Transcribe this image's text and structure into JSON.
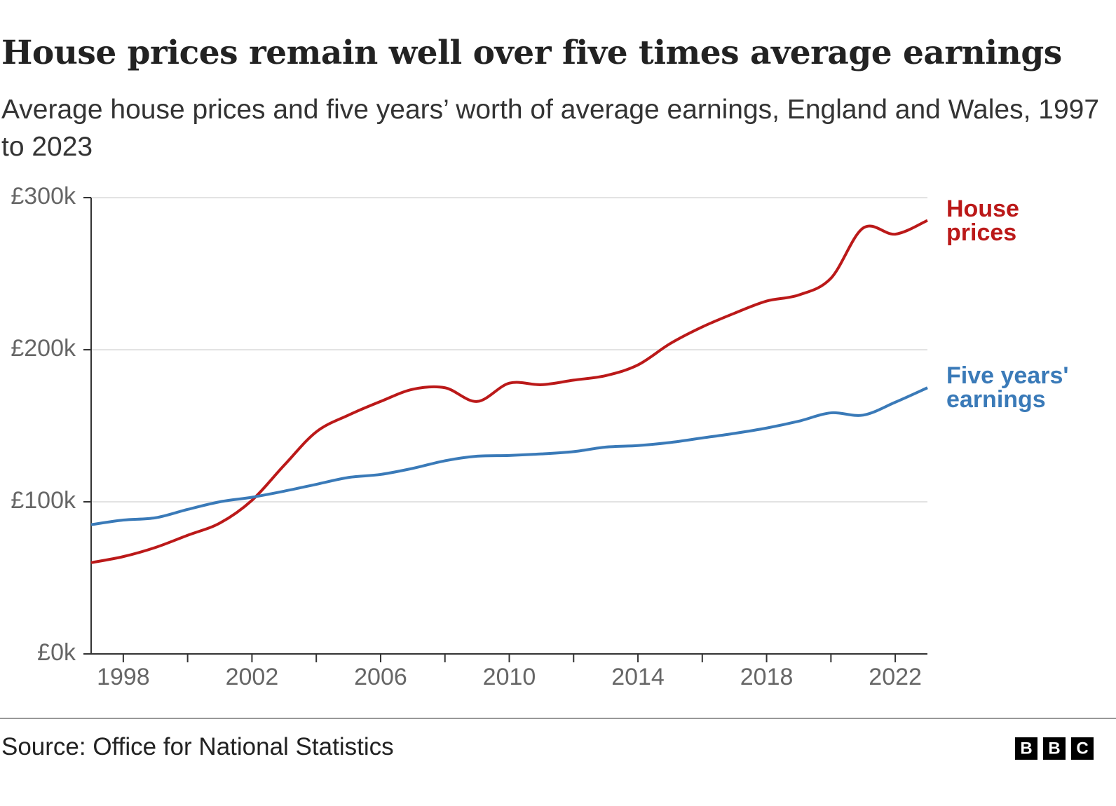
{
  "chart_data": {
    "type": "line",
    "title": "House prices remain well over five times average earnings",
    "subtitle": "Average house prices and five years’ worth of average earnings, England and Wales, 1997 to 2023",
    "x": [
      1997,
      1998,
      1999,
      2000,
      2001,
      2002,
      2003,
      2004,
      2005,
      2006,
      2007,
      2008,
      2009,
      2010,
      2011,
      2012,
      2013,
      2014,
      2015,
      2016,
      2017,
      2018,
      2019,
      2020,
      2021,
      2022,
      2023
    ],
    "series": [
      {
        "name": "House prices",
        "color": "#bb1919",
        "values": [
          60000,
          64000,
          70000,
          78000,
          86000,
          101000,
          124000,
          146000,
          157000,
          166000,
          174000,
          175000,
          166000,
          178000,
          177000,
          180000,
          183000,
          190000,
          204000,
          215000,
          224000,
          232000,
          236000,
          247000,
          280000,
          276000,
          285000
        ]
      },
      {
        "name": "Five years' earnings",
        "color": "#3a7ab8",
        "values": [
          85000,
          88000,
          89500,
          95000,
          100000,
          103000,
          107000,
          111500,
          116000,
          118000,
          122000,
          127000,
          130000,
          130500,
          131500,
          133000,
          136000,
          137000,
          139000,
          142000,
          145000,
          148500,
          153000,
          158500,
          157000,
          165500,
          175000
        ]
      }
    ],
    "xlim": [
      1997,
      2023
    ],
    "xticks": [
      1998,
      2002,
      2006,
      2010,
      2014,
      2018,
      2022
    ],
    "xticks_minor": [
      2000,
      2004,
      2008,
      2012,
      2016,
      2020
    ],
    "ylim": [
      0,
      300000
    ],
    "yticks": [
      {
        "value": 0,
        "label": "£0k"
      },
      {
        "value": 100000,
        "label": "£100k"
      },
      {
        "value": 200000,
        "label": "£200k"
      },
      {
        "value": 300000,
        "label": "£300k"
      }
    ],
    "grid": true,
    "source": "Source: Office for National Statistics",
    "logo": [
      "B",
      "B",
      "C"
    ]
  }
}
